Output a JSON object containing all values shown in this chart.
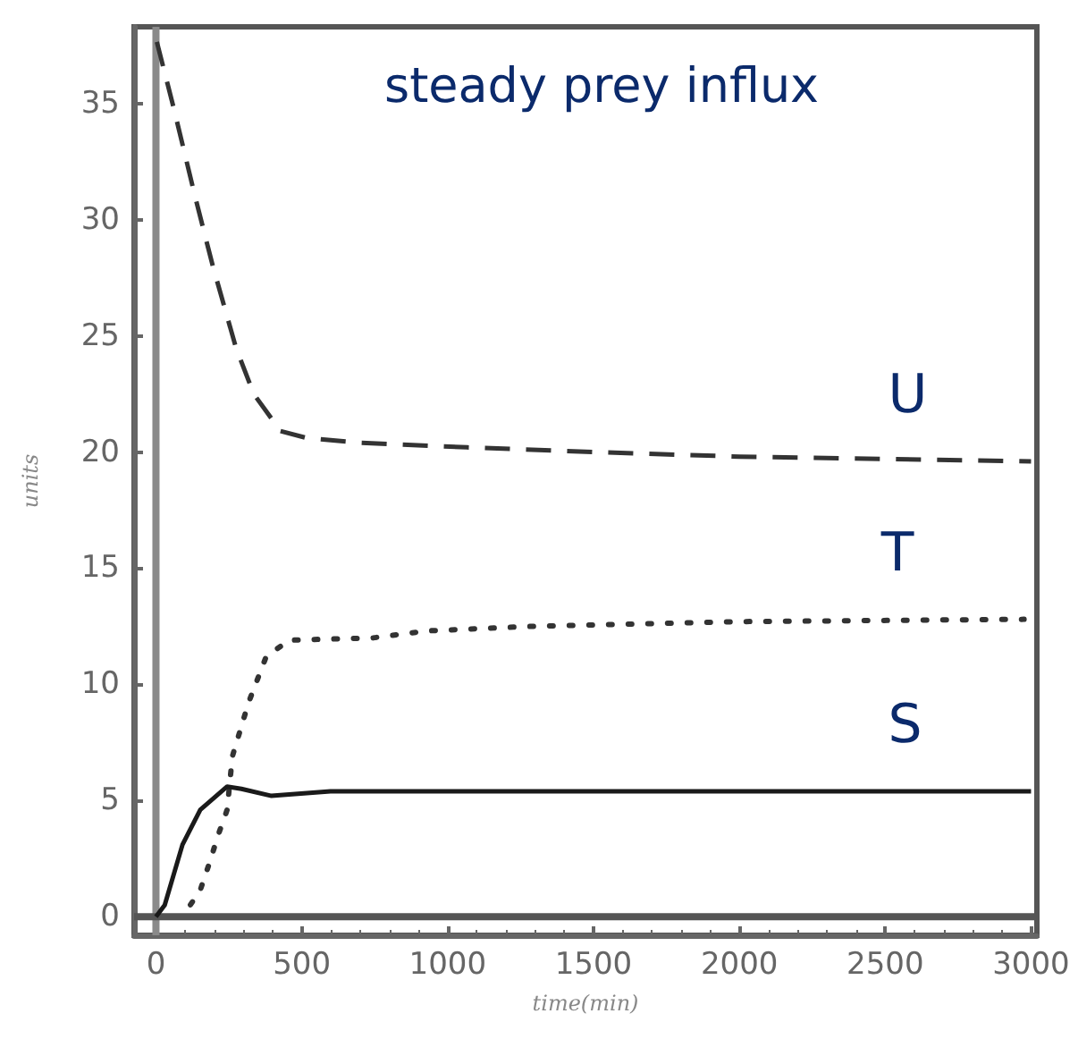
{
  "chart_data": {
    "type": "line",
    "title": "steady prey influx",
    "xlabel": "time(min)",
    "ylabel": "units",
    "xlim": [
      -75,
      3020
    ],
    "xticks": [
      0,
      500,
      1000,
      1500,
      2000,
      2500,
      3000
    ],
    "ylim": [
      -0.8,
      38.3
    ],
    "yticks": [
      0,
      5,
      10,
      15,
      20,
      25,
      30,
      35
    ],
    "grid": false,
    "marker": "none",
    "ref_lines": [
      {
        "axis": "x",
        "value": 0,
        "color": "#8a8a8a"
      },
      {
        "axis": "y",
        "value": 0,
        "color": "#555555"
      }
    ],
    "series": [
      {
        "name": "U",
        "color": "#333333",
        "line_style": "dashed",
        "x": [
          0,
          61,
          134,
          195,
          274,
          335,
          427,
          518,
          700,
          1067,
          1500,
          2000,
          2500,
          3000
        ],
        "values": [
          37.8,
          34.8,
          31,
          28,
          24.5,
          22.5,
          20.9,
          20.6,
          20.4,
          20.2,
          20,
          19.8,
          19.7,
          19.6
        ]
      },
      {
        "name": "T",
        "color": "#333333",
        "line_style": "dotted",
        "x": [
          91,
          152,
          183,
          213,
          244,
          262,
          317,
          378,
          457,
          744,
          927,
          1293,
          2000,
          2976
        ],
        "values": [
          0,
          1.15,
          2.3,
          3.5,
          4.6,
          6.9,
          9.2,
          11.2,
          11.9,
          12,
          12.3,
          12.5,
          12.7,
          12.8
        ]
      },
      {
        "name": "S",
        "color": "#1a1a1a",
        "line_style": "solid",
        "x": [
          0,
          30,
          91,
          152,
          244,
          293,
          396,
          598,
          1000,
          2000,
          3000
        ],
        "values": [
          0,
          0.5,
          3.1,
          4.6,
          5.6,
          5.5,
          5.2,
          5.4,
          5.4,
          5.4,
          5.4
        ]
      }
    ]
  }
}
